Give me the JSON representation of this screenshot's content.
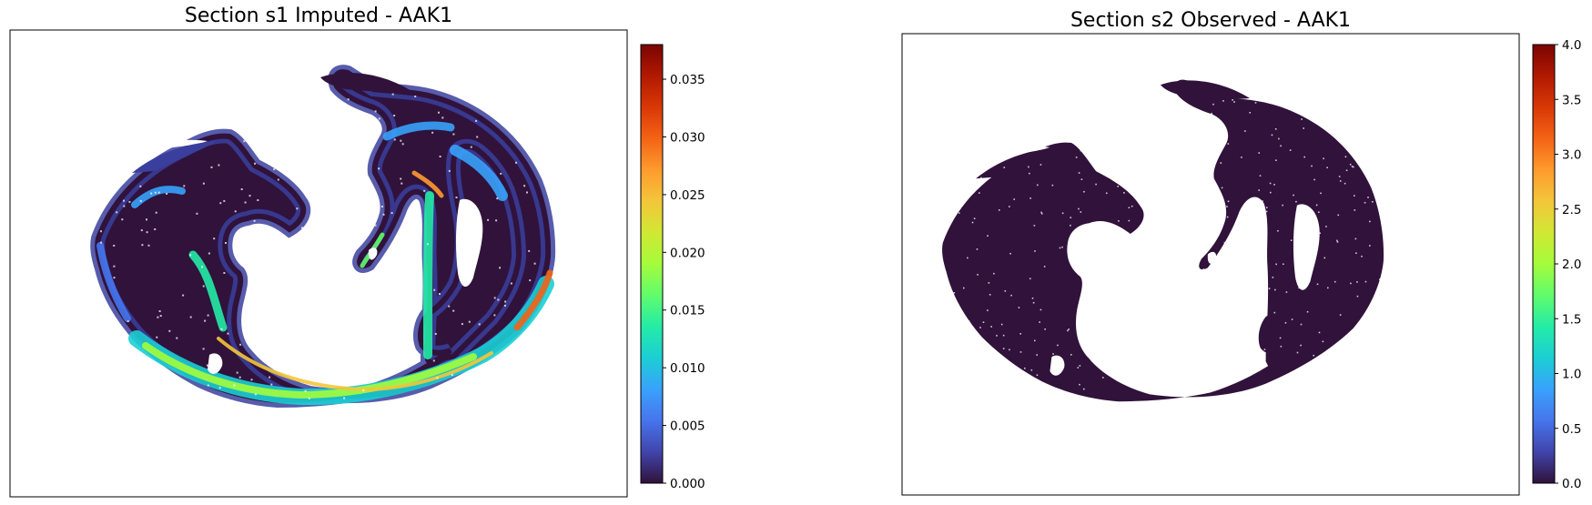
{
  "chart_data": [
    {
      "type": "heatmap",
      "title": "Section s1 Imputed - AAK1",
      "xlabel": "",
      "ylabel": "",
      "axes_ticks": false,
      "colormap": "turbo",
      "colorbar": {
        "range": [
          0.0,
          0.038
        ],
        "ticks": [
          0.0,
          0.005,
          0.01,
          0.015,
          0.02,
          0.025,
          0.03,
          0.035
        ],
        "tick_labels": [
          "0.000",
          "0.005",
          "0.010",
          "0.015",
          "0.020",
          "0.025",
          "0.030",
          "0.035"
        ]
      },
      "expression_distribution": {
        "background_level": 0.0015,
        "max_level": 0.035
      }
    },
    {
      "type": "heatmap",
      "title": "Section s2 Observed - AAK1",
      "xlabel": "",
      "ylabel": "",
      "axes_ticks": false,
      "colormap": "turbo",
      "colorbar": {
        "range": [
          0.0,
          4.0
        ],
        "ticks": [
          0.0,
          0.5,
          1.0,
          1.5,
          2.0,
          2.5,
          3.0,
          3.5,
          4.0
        ],
        "tick_labels": [
          "0.0",
          "0.5",
          "1.0",
          "1.5",
          "2.0",
          "2.5",
          "3.0",
          "3.5",
          "4.0"
        ]
      },
      "expression_distribution": {
        "background_level": 0.0,
        "max_level": 0.0
      }
    }
  ],
  "colors": {
    "turbo_stops": [
      "#30123b",
      "#4145ab",
      "#4675ed",
      "#39a2fc",
      "#1bcfd4",
      "#24eca6",
      "#61fc6c",
      "#a4fc3b",
      "#d1e834",
      "#f3c63a",
      "#fe9b2d",
      "#f36315",
      "#d93806",
      "#b11901",
      "#7a0403"
    ],
    "tissue_low": "#30123b",
    "axes_frame": "#000000",
    "background": "#ffffff"
  }
}
